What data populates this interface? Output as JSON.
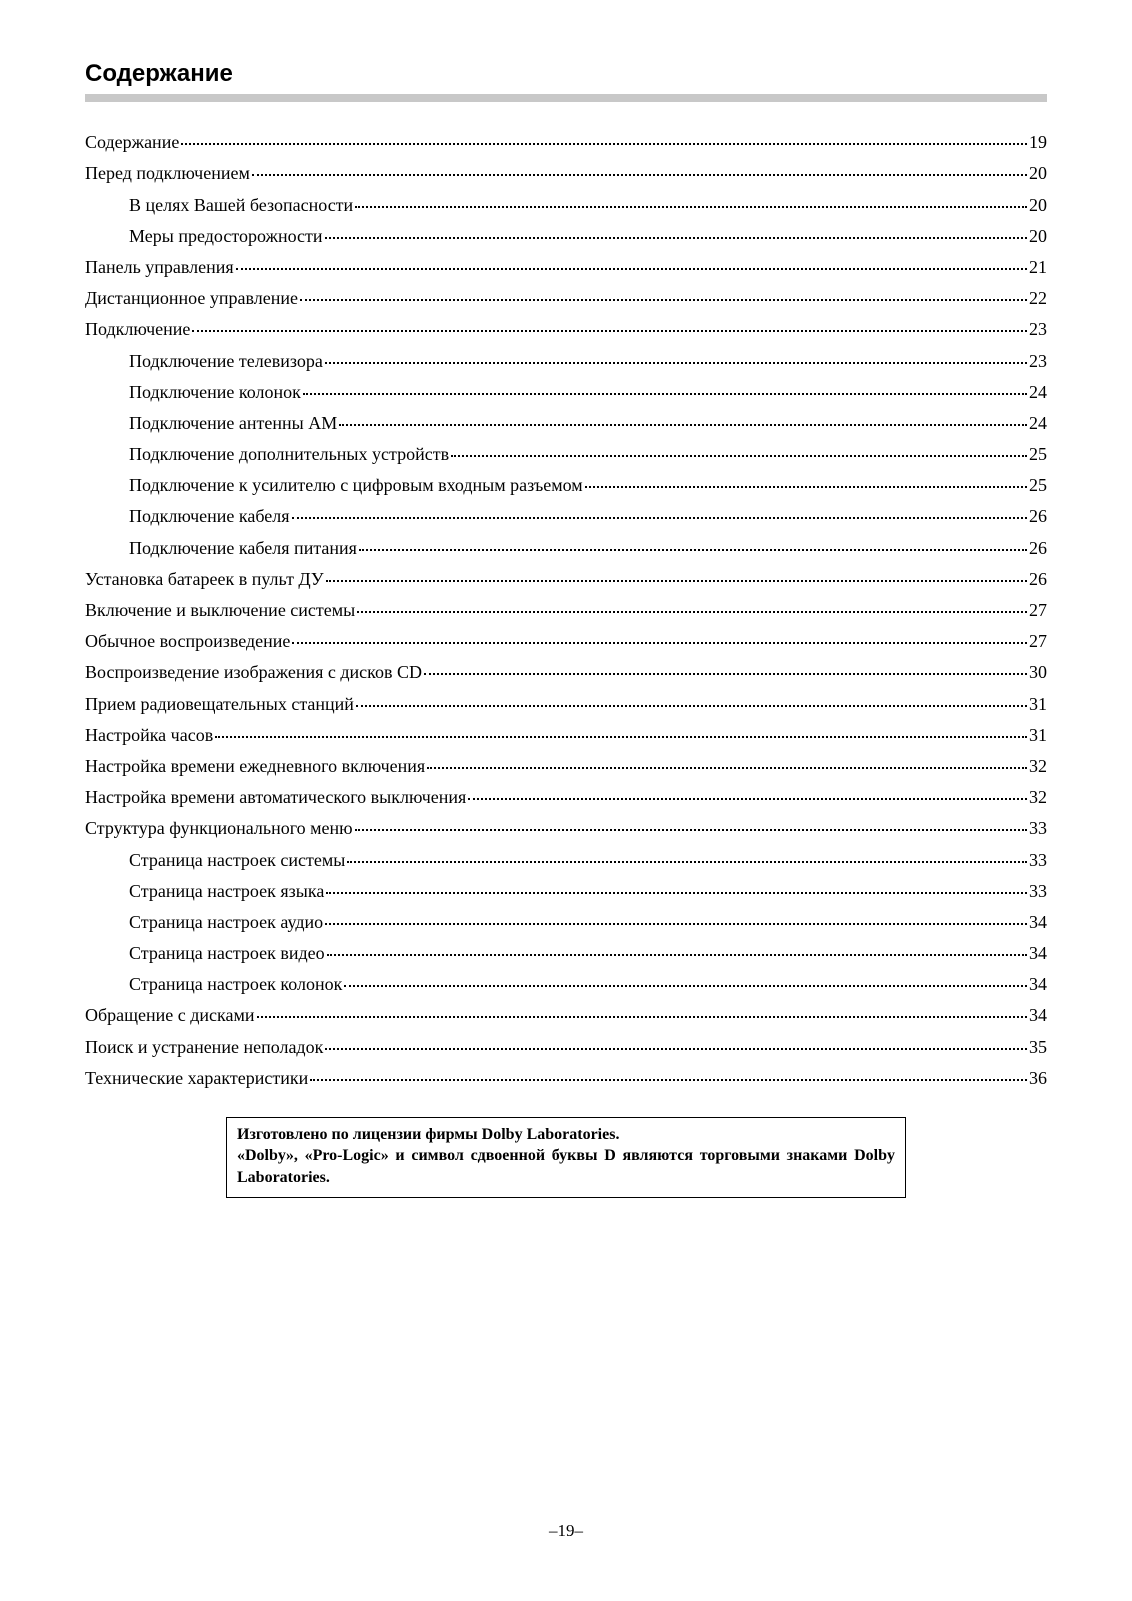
{
  "title": "Содержание",
  "page_number_display": "–19–",
  "colors": {
    "rule": "#c8c8c8",
    "text": "#000000",
    "background": "#ffffff"
  },
  "toc": {
    "entries": [
      {
        "label": "Содержание",
        "page": "19",
        "indent": 0
      },
      {
        "label": "Перед подключением",
        "page": "20",
        "indent": 0
      },
      {
        "label": "В целях Вашей безопасности",
        "page": "20",
        "indent": 1
      },
      {
        "label": "Меры предосторожности",
        "page": "20",
        "indent": 1
      },
      {
        "label": "Панель управления",
        "page": "21",
        "indent": 0
      },
      {
        "label": "Дистанционное управление",
        "page": "22",
        "indent": 0
      },
      {
        "label": "Подключение",
        "page": "23",
        "indent": 0
      },
      {
        "label": "Подключение телевизора",
        "page": "23",
        "indent": 1
      },
      {
        "label": "Подключение колонок",
        "page": "24",
        "indent": 1
      },
      {
        "label": "Подключение антенны АМ",
        "page": "24",
        "indent": 1
      },
      {
        "label": "Подключение дополнительных устройств",
        "page": "25",
        "indent": 1
      },
      {
        "label": "Подключение к усилителю с цифровым входным разъемом",
        "page": "25",
        "indent": 1
      },
      {
        "label": "Подключение кабеля",
        "page": "26",
        "indent": 1
      },
      {
        "label": "Подключение кабеля питания",
        "page": "26",
        "indent": 1
      },
      {
        "label": "Установка батареек в пульт ДУ",
        "page": "26",
        "indent": 0
      },
      {
        "label": "Включение и выключение системы",
        "page": "27",
        "indent": 0
      },
      {
        "label": "Обычное воспроизведение",
        "page": "27",
        "indent": 0
      },
      {
        "label": "Воспроизведение изображения с дисков CD",
        "page": "30",
        "indent": 0
      },
      {
        "label": "Прием радиовещательных станций",
        "page": "31",
        "indent": 0
      },
      {
        "label": "Настройка часов",
        "page": "31",
        "indent": 0
      },
      {
        "label": "Настройка времени ежедневного включения",
        "page": "32",
        "indent": 0
      },
      {
        "label": "Настройка времени автоматического выключения",
        "page": "32",
        "indent": 0
      },
      {
        "label": "Структура функционального меню",
        "page": "33",
        "indent": 0
      },
      {
        "label": "Страница настроек системы",
        "page": "33",
        "indent": 1
      },
      {
        "label": "Страница настроек языка",
        "page": "33",
        "indent": 1
      },
      {
        "label": "Страница настроек аудио",
        "page": "34",
        "indent": 1
      },
      {
        "label": "Страница настроек видео",
        "page": "34",
        "indent": 1
      },
      {
        "label": "Страница настроек колонок",
        "page": "34",
        "indent": 1
      },
      {
        "label": "Обращение с дисками",
        "page": "34",
        "indent": 0
      },
      {
        "label": "Поиск и устранение неполадок",
        "page": "35",
        "indent": 0
      },
      {
        "label": "Технические характеристики",
        "page": "36",
        "indent": 0
      }
    ]
  },
  "notice": {
    "line1": "Изготовлено по лицензии фирмы Dolby Laboratories.",
    "line2": "«Dolby», «Pro-Logic» и символ сдвоенной буквы D являются торговыми знаками Dolby Laboratories."
  }
}
